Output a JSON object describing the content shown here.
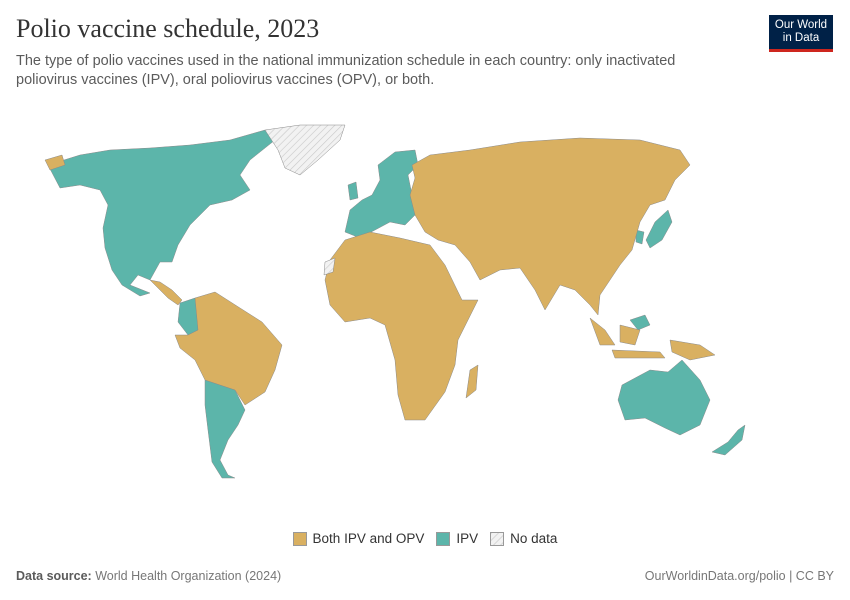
{
  "header": {
    "title": "Polio vaccine schedule, 2023",
    "subtitle": "The type of polio vaccines used in the national immunization schedule in each country: only inactivated poliovirus vaccines (IPV), oral poliovirus vaccines (OPV), or both."
  },
  "logo": {
    "line1": "Our World",
    "line2": "in Data"
  },
  "colors": {
    "both": "#d9b061",
    "ipv": "#5cb5aa",
    "no_data": "#e6e6e6"
  },
  "legend": [
    {
      "label": "Both IPV and OPV",
      "color": "#d9b061"
    },
    {
      "label": "IPV",
      "color": "#5cb5aa"
    },
    {
      "label": "No data",
      "color": "hatched"
    }
  ],
  "map_data": {
    "Both IPV and OPV": [
      "Russia",
      "China",
      "India",
      "Africa (most countries)",
      "Middle East",
      "Southeast Asia",
      "Indonesia",
      "Brazil",
      "Peru",
      "Bolivia",
      "Venezuela",
      "Central America (part)",
      "Caribbean (part)",
      "Ukraine",
      "Turkey"
    ],
    "IPV": [
      "United States",
      "Canada",
      "Mexico",
      "Western & Northern Europe",
      "Japan",
      "South Korea",
      "Australia",
      "New Zealand",
      "Colombia",
      "Chile",
      "Argentina",
      "Uruguay",
      "Paraguay",
      "Malaysia"
    ],
    "No data": [
      "Greenland",
      "Western Sahara"
    ]
  },
  "footer": {
    "source_label": "Data source:",
    "source": "World Health Organization (2024)",
    "url": "OurWorldinData.org/polio | CC BY"
  }
}
